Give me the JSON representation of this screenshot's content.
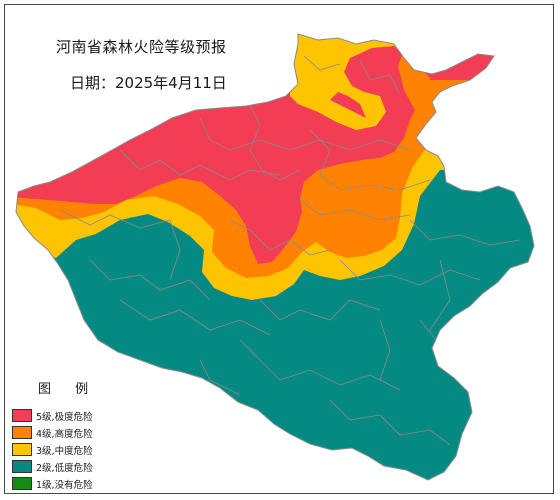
{
  "map": {
    "title": "河南省森林火险等级预报",
    "date": "日期：2025年4月11日"
  },
  "legend": {
    "title": "图 例",
    "items": [
      {
        "key": "level5",
        "label": "5级,极度危险",
        "color": "#f23d55"
      },
      {
        "key": "level4",
        "label": "4级,高度危险",
        "color": "#ff8200"
      },
      {
        "key": "level3",
        "label": "3级,中度危险",
        "color": "#ffc400"
      },
      {
        "key": "level2",
        "label": "2级,低度危险",
        "color": "#058a83"
      },
      {
        "key": "level1",
        "label": "1级,没有危险",
        "color": "#158a14"
      }
    ]
  },
  "colors": {
    "border": "#808080",
    "frame": "#4a4a4a"
  }
}
